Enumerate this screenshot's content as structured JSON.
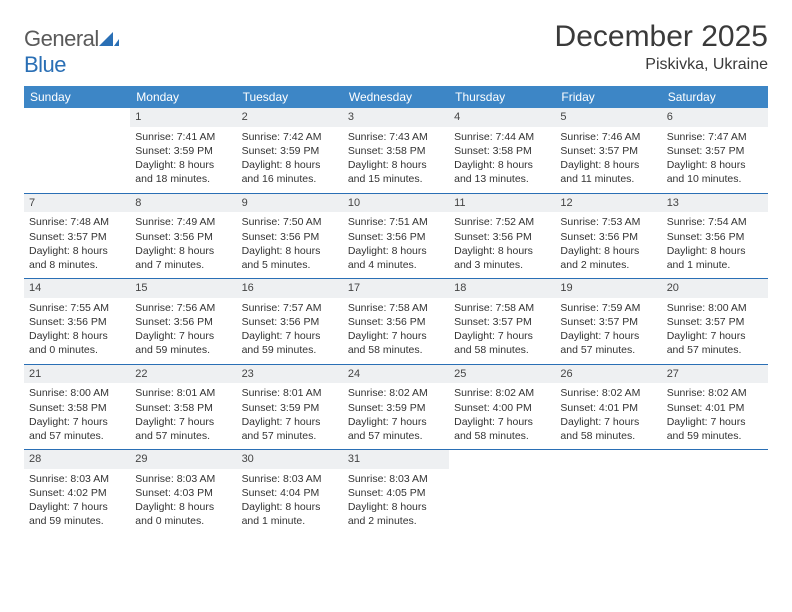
{
  "brand": {
    "name_a": "General",
    "name_b": "Blue"
  },
  "title": "December 2025",
  "location": "Piskivka, Ukraine",
  "colors": {
    "header_bg": "#3d86c6",
    "rule": "#2a6fb5",
    "daynum_bg": "#eef0f2",
    "text": "#333333",
    "brand_blue": "#2a6fb5"
  },
  "days_of_week": [
    "Sunday",
    "Monday",
    "Tuesday",
    "Wednesday",
    "Thursday",
    "Friday",
    "Saturday"
  ],
  "weeks": [
    [
      null,
      {
        "n": "1",
        "sr": "Sunrise: 7:41 AM",
        "ss": "Sunset: 3:59 PM",
        "dl1": "Daylight: 8 hours",
        "dl2": "and 18 minutes."
      },
      {
        "n": "2",
        "sr": "Sunrise: 7:42 AM",
        "ss": "Sunset: 3:59 PM",
        "dl1": "Daylight: 8 hours",
        "dl2": "and 16 minutes."
      },
      {
        "n": "3",
        "sr": "Sunrise: 7:43 AM",
        "ss": "Sunset: 3:58 PM",
        "dl1": "Daylight: 8 hours",
        "dl2": "and 15 minutes."
      },
      {
        "n": "4",
        "sr": "Sunrise: 7:44 AM",
        "ss": "Sunset: 3:58 PM",
        "dl1": "Daylight: 8 hours",
        "dl2": "and 13 minutes."
      },
      {
        "n": "5",
        "sr": "Sunrise: 7:46 AM",
        "ss": "Sunset: 3:57 PM",
        "dl1": "Daylight: 8 hours",
        "dl2": "and 11 minutes."
      },
      {
        "n": "6",
        "sr": "Sunrise: 7:47 AM",
        "ss": "Sunset: 3:57 PM",
        "dl1": "Daylight: 8 hours",
        "dl2": "and 10 minutes."
      }
    ],
    [
      {
        "n": "7",
        "sr": "Sunrise: 7:48 AM",
        "ss": "Sunset: 3:57 PM",
        "dl1": "Daylight: 8 hours",
        "dl2": "and 8 minutes."
      },
      {
        "n": "8",
        "sr": "Sunrise: 7:49 AM",
        "ss": "Sunset: 3:56 PM",
        "dl1": "Daylight: 8 hours",
        "dl2": "and 7 minutes."
      },
      {
        "n": "9",
        "sr": "Sunrise: 7:50 AM",
        "ss": "Sunset: 3:56 PM",
        "dl1": "Daylight: 8 hours",
        "dl2": "and 5 minutes."
      },
      {
        "n": "10",
        "sr": "Sunrise: 7:51 AM",
        "ss": "Sunset: 3:56 PM",
        "dl1": "Daylight: 8 hours",
        "dl2": "and 4 minutes."
      },
      {
        "n": "11",
        "sr": "Sunrise: 7:52 AM",
        "ss": "Sunset: 3:56 PM",
        "dl1": "Daylight: 8 hours",
        "dl2": "and 3 minutes."
      },
      {
        "n": "12",
        "sr": "Sunrise: 7:53 AM",
        "ss": "Sunset: 3:56 PM",
        "dl1": "Daylight: 8 hours",
        "dl2": "and 2 minutes."
      },
      {
        "n": "13",
        "sr": "Sunrise: 7:54 AM",
        "ss": "Sunset: 3:56 PM",
        "dl1": "Daylight: 8 hours",
        "dl2": "and 1 minute."
      }
    ],
    [
      {
        "n": "14",
        "sr": "Sunrise: 7:55 AM",
        "ss": "Sunset: 3:56 PM",
        "dl1": "Daylight: 8 hours",
        "dl2": "and 0 minutes."
      },
      {
        "n": "15",
        "sr": "Sunrise: 7:56 AM",
        "ss": "Sunset: 3:56 PM",
        "dl1": "Daylight: 7 hours",
        "dl2": "and 59 minutes."
      },
      {
        "n": "16",
        "sr": "Sunrise: 7:57 AM",
        "ss": "Sunset: 3:56 PM",
        "dl1": "Daylight: 7 hours",
        "dl2": "and 59 minutes."
      },
      {
        "n": "17",
        "sr": "Sunrise: 7:58 AM",
        "ss": "Sunset: 3:56 PM",
        "dl1": "Daylight: 7 hours",
        "dl2": "and 58 minutes."
      },
      {
        "n": "18",
        "sr": "Sunrise: 7:58 AM",
        "ss": "Sunset: 3:57 PM",
        "dl1": "Daylight: 7 hours",
        "dl2": "and 58 minutes."
      },
      {
        "n": "19",
        "sr": "Sunrise: 7:59 AM",
        "ss": "Sunset: 3:57 PM",
        "dl1": "Daylight: 7 hours",
        "dl2": "and 57 minutes."
      },
      {
        "n": "20",
        "sr": "Sunrise: 8:00 AM",
        "ss": "Sunset: 3:57 PM",
        "dl1": "Daylight: 7 hours",
        "dl2": "and 57 minutes."
      }
    ],
    [
      {
        "n": "21",
        "sr": "Sunrise: 8:00 AM",
        "ss": "Sunset: 3:58 PM",
        "dl1": "Daylight: 7 hours",
        "dl2": "and 57 minutes."
      },
      {
        "n": "22",
        "sr": "Sunrise: 8:01 AM",
        "ss": "Sunset: 3:58 PM",
        "dl1": "Daylight: 7 hours",
        "dl2": "and 57 minutes."
      },
      {
        "n": "23",
        "sr": "Sunrise: 8:01 AM",
        "ss": "Sunset: 3:59 PM",
        "dl1": "Daylight: 7 hours",
        "dl2": "and 57 minutes."
      },
      {
        "n": "24",
        "sr": "Sunrise: 8:02 AM",
        "ss": "Sunset: 3:59 PM",
        "dl1": "Daylight: 7 hours",
        "dl2": "and 57 minutes."
      },
      {
        "n": "25",
        "sr": "Sunrise: 8:02 AM",
        "ss": "Sunset: 4:00 PM",
        "dl1": "Daylight: 7 hours",
        "dl2": "and 58 minutes."
      },
      {
        "n": "26",
        "sr": "Sunrise: 8:02 AM",
        "ss": "Sunset: 4:01 PM",
        "dl1": "Daylight: 7 hours",
        "dl2": "and 58 minutes."
      },
      {
        "n": "27",
        "sr": "Sunrise: 8:02 AM",
        "ss": "Sunset: 4:01 PM",
        "dl1": "Daylight: 7 hours",
        "dl2": "and 59 minutes."
      }
    ],
    [
      {
        "n": "28",
        "sr": "Sunrise: 8:03 AM",
        "ss": "Sunset: 4:02 PM",
        "dl1": "Daylight: 7 hours",
        "dl2": "and 59 minutes."
      },
      {
        "n": "29",
        "sr": "Sunrise: 8:03 AM",
        "ss": "Sunset: 4:03 PM",
        "dl1": "Daylight: 8 hours",
        "dl2": "and 0 minutes."
      },
      {
        "n": "30",
        "sr": "Sunrise: 8:03 AM",
        "ss": "Sunset: 4:04 PM",
        "dl1": "Daylight: 8 hours",
        "dl2": "and 1 minute."
      },
      {
        "n": "31",
        "sr": "Sunrise: 8:03 AM",
        "ss": "Sunset: 4:05 PM",
        "dl1": "Daylight: 8 hours",
        "dl2": "and 2 minutes."
      },
      null,
      null,
      null
    ]
  ]
}
